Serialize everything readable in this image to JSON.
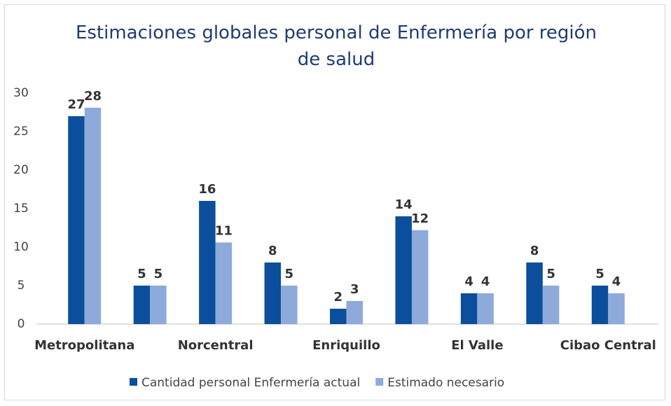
{
  "chart_data": {
    "type": "bar",
    "title": "Estimaciones globales personal de Enfermería por región de salud",
    "categories": [
      "Metropolitana",
      null,
      "Norcentral",
      null,
      "Enriquillo",
      null,
      "El Valle",
      null,
      "Cibao Central"
    ],
    "series": [
      {
        "name": "Cantidad personal Enfermería actual",
        "color": "#0b4f9c",
        "values": [
          27,
          5,
          16,
          8,
          2,
          14,
          4,
          8,
          5
        ]
      },
      {
        "name": "Estimado necesario",
        "color": "#8eaadb",
        "values": [
          28.1,
          5,
          10.6,
          5,
          3,
          12.2,
          4,
          5,
          4
        ],
        "value_labels": [
          "28",
          "5",
          "11",
          "5",
          "3",
          "12",
          "4",
          "5",
          "4"
        ]
      }
    ],
    "ylim": [
      0,
      30
    ],
    "yticks": [
      0,
      5,
      10,
      15,
      20,
      25,
      30
    ],
    "grid": false,
    "legend": "bottom"
  }
}
